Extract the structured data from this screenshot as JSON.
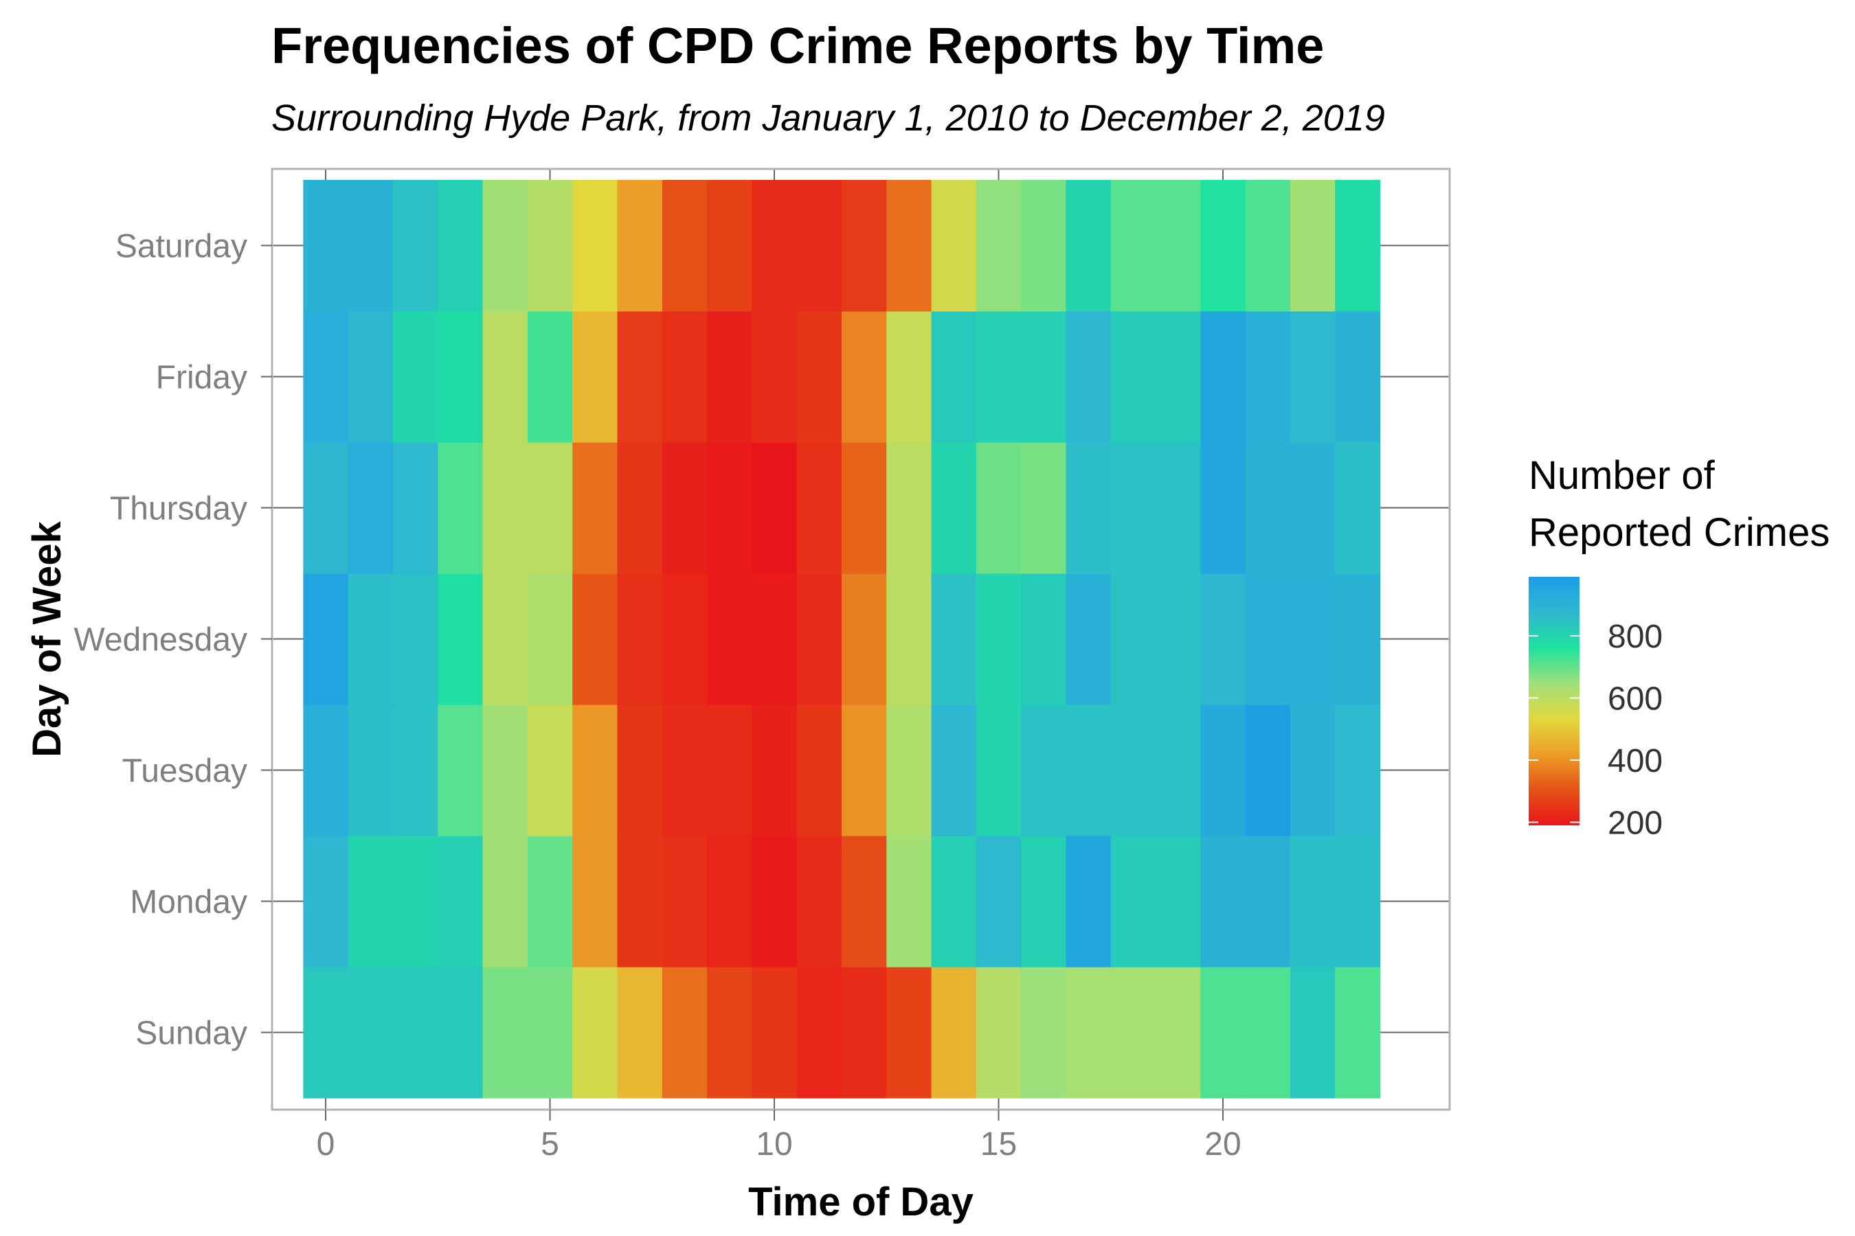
{
  "chart_data": {
    "type": "heatmap",
    "title": "Frequencies of CPD Crime Reports by Time",
    "subtitle": "Surrounding Hyde Park, from January 1, 2010 to December 2, 2019",
    "xlabel": "Time of Day",
    "ylabel": "Day of Week",
    "xlim": [
      -0.5,
      23.5
    ],
    "x_ticks": [
      0,
      5,
      10,
      15,
      20
    ],
    "x": [
      0,
      1,
      2,
      3,
      4,
      5,
      6,
      7,
      8,
      9,
      10,
      11,
      12,
      13,
      14,
      15,
      16,
      17,
      18,
      19,
      20,
      21,
      22,
      23
    ],
    "y": [
      "Sunday",
      "Monday",
      "Tuesday",
      "Wednesday",
      "Thursday",
      "Friday",
      "Saturday"
    ],
    "values": [
      [
        830,
        830,
        830,
        830,
        680,
        680,
        560,
        470,
        350,
        280,
        250,
        220,
        230,
        270,
        460,
        610,
        650,
        630,
        630,
        630,
        720,
        720,
        830,
        720
      ],
      [
        880,
        800,
        800,
        810,
        640,
        700,
        410,
        250,
        240,
        220,
        200,
        230,
        290,
        640,
        810,
        870,
        810,
        950,
        820,
        820,
        900,
        900,
        860,
        860
      ],
      [
        910,
        860,
        850,
        710,
        640,
        580,
        410,
        250,
        230,
        230,
        210,
        250,
        400,
        620,
        880,
        800,
        850,
        850,
        850,
        850,
        930,
        980,
        900,
        870
      ],
      [
        960,
        860,
        850,
        770,
        600,
        620,
        310,
        240,
        220,
        200,
        200,
        230,
        370,
        600,
        850,
        800,
        820,
        910,
        850,
        850,
        880,
        910,
        910,
        900
      ],
      [
        880,
        920,
        870,
        720,
        600,
        600,
        350,
        250,
        210,
        200,
        190,
        240,
        330,
        600,
        800,
        690,
        680,
        860,
        850,
        850,
        950,
        900,
        900,
        860
      ],
      [
        920,
        880,
        800,
        780,
        600,
        730,
        470,
        260,
        240,
        210,
        230,
        250,
        380,
        580,
        830,
        810,
        810,
        880,
        820,
        820,
        950,
        910,
        870,
        900
      ],
      [
        900,
        900,
        850,
        810,
        640,
        610,
        530,
        420,
        300,
        270,
        230,
        230,
        260,
        350,
        560,
        660,
        680,
        800,
        710,
        710,
        760,
        720,
        640,
        780
      ]
    ],
    "legend": {
      "title_line1": "Number of",
      "title_line2": "Reported Crimes",
      "ticks": [
        200,
        400,
        600,
        800
      ],
      "min": 190,
      "max": 990,
      "position": "right"
    },
    "colorscale": [
      "#e8161a",
      "#e55216",
      "#ec9e28",
      "#e2d83e",
      "#9ee07a",
      "#1fe29e",
      "#2eb8d0",
      "#1c9de6"
    ],
    "panel_border": "#b3b3b3",
    "grid_color": "#666666",
    "grid": "major lines under tiles"
  }
}
